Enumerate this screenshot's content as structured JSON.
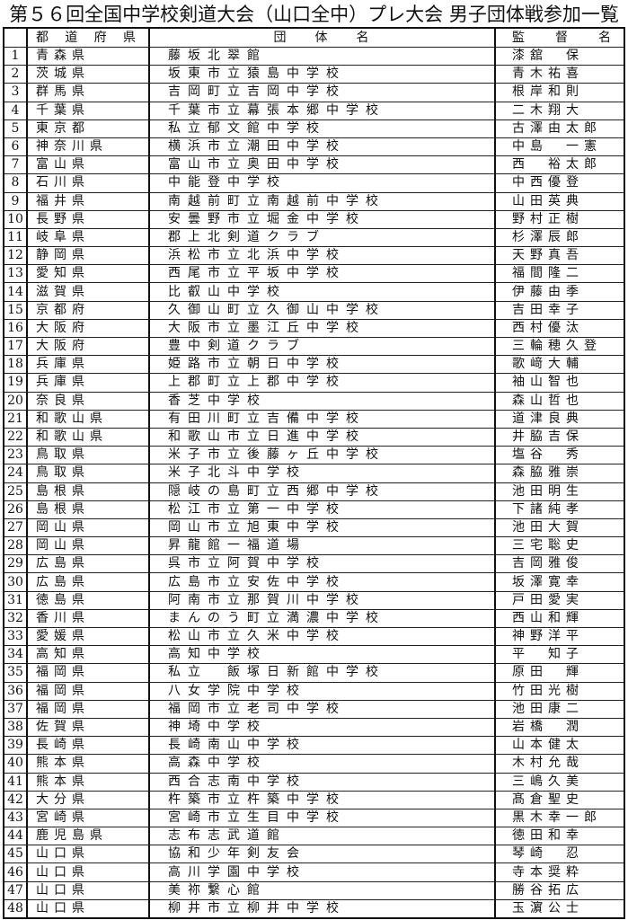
{
  "title": "第５６回全国中学校剣道大会（山口全中）プレ大会 男子団体戦参加一覧",
  "headers": {
    "num": "",
    "pref": "都道府県",
    "team": "団体名",
    "coach": "監　督　名"
  },
  "rows": [
    [
      "1",
      "青森県",
      "藤坂北翠館",
      "漆舘　保"
    ],
    [
      "2",
      "茨城県",
      "坂東市立猿島中学校",
      "青木祐喜"
    ],
    [
      "3",
      "群馬県",
      "吉岡町立吉岡中学校",
      "根岸和則"
    ],
    [
      "4",
      "千葉県",
      "千葉市立幕張本郷中学校",
      "二木翔大"
    ],
    [
      "5",
      "東京都",
      "私立郁文館中学校",
      "古澤由太郎"
    ],
    [
      "6",
      "神奈川県",
      "横浜市立潮田中学校",
      "中島　一憲"
    ],
    [
      "7",
      "富山県",
      "富山市立奥田中学校",
      "西　裕太郎"
    ],
    [
      "8",
      "石川県",
      "中能登中学校",
      "中西優登"
    ],
    [
      "9",
      "福井県",
      "南越前町立南越前中学校",
      "山田英典"
    ],
    [
      "10",
      "長野県",
      "安曇野市立堀金中学校",
      "野村正樹"
    ],
    [
      "11",
      "岐阜県",
      "郡上北剣道クラブ",
      "杉澤辰郎"
    ],
    [
      "12",
      "静岡県",
      "浜松市立北浜中学校",
      "天野真吾"
    ],
    [
      "13",
      "愛知県",
      "西尾市立平坂中学校",
      "福間隆二"
    ],
    [
      "14",
      "滋賀県",
      "比叡山中学校",
      "伊藤由季"
    ],
    [
      "15",
      "京都府",
      "久御山町立久御山中学校",
      "吉田幸子"
    ],
    [
      "16",
      "大阪府",
      "大阪市立墨江丘中学校",
      "西村優汰"
    ],
    [
      "17",
      "大阪府",
      "豊中剣道クラブ",
      "三輪穂久登"
    ],
    [
      "18",
      "兵庫県",
      "姫路市立朝日中学校",
      "歌﨑大輔"
    ],
    [
      "19",
      "兵庫県",
      "上郡町立上郡中学校",
      "袖山智也"
    ],
    [
      "20",
      "奈良県",
      "香芝中学校",
      "森山哲也"
    ],
    [
      "21",
      "和歌山県",
      "有田川町立吉備中学校",
      "道津良典"
    ],
    [
      "22",
      "和歌山県",
      "和歌山市立日進中学校",
      "井脇吉保"
    ],
    [
      "23",
      "鳥取県",
      "米子市立後藤ヶ丘中学校",
      "塩谷　秀"
    ],
    [
      "24",
      "鳥取県",
      "米子北斗中学校",
      "森脇雅崇"
    ],
    [
      "25",
      "島根県",
      "隠岐の島町立西郷中学校",
      "池田明生"
    ],
    [
      "26",
      "島根県",
      "松江市立第一中学校",
      "下諸純孝"
    ],
    [
      "27",
      "岡山県",
      "岡山市立旭東中学校",
      "池田大賀"
    ],
    [
      "28",
      "岡山県",
      "昇龍館一福道場",
      "三宅聡史"
    ],
    [
      "29",
      "広島県",
      "呉市立阿賀中学校",
      "吉岡雅俊"
    ],
    [
      "30",
      "広島県",
      "広島市立安佐中学校",
      "坂澤寛幸"
    ],
    [
      "31",
      "徳島県",
      "阿南市立那賀川中学校",
      "戸田愛実"
    ],
    [
      "32",
      "香川県",
      "まんのう町立満濃中学校",
      "西山和輝"
    ],
    [
      "33",
      "愛媛県",
      "松山市立久米中学校",
      "神野洋平"
    ],
    [
      "34",
      "高知県",
      "高知中学校",
      "平　知子"
    ],
    [
      "35",
      "福岡県",
      "私立　飯塚日新館中学校",
      "原田　輝"
    ],
    [
      "36",
      "福岡県",
      "八女学院中学校",
      "竹田光樹"
    ],
    [
      "37",
      "福岡県",
      "福岡市立老司中学校",
      "池田康二"
    ],
    [
      "38",
      "佐賀県",
      "神埼中学校",
      "岩橋　潤"
    ],
    [
      "39",
      "長崎県",
      "長崎南山中学校",
      "山本健太"
    ],
    [
      "40",
      "熊本県",
      "高森中学校",
      "木村允哉"
    ],
    [
      "41",
      "熊本県",
      "西合志南中学校",
      "三嶋久美"
    ],
    [
      "42",
      "大分県",
      "杵築市立杵築中学校",
      "髙倉聖史"
    ],
    [
      "43",
      "宮崎県",
      "宮崎市立生目中学校",
      "黒木幸一郎"
    ],
    [
      "44",
      "鹿児島県",
      "志布志武道館",
      "徳田和幸"
    ],
    [
      "45",
      "山口県",
      "協和少年剣友会",
      "琴崎　忍"
    ],
    [
      "46",
      "山口県",
      "高川学園中学校",
      "寺本奨粋"
    ],
    [
      "47",
      "山口県",
      "美祢繋心館",
      "勝谷拓広"
    ],
    [
      "48",
      "山口県",
      "柳井市立柳井中学校",
      "玉濵公士"
    ]
  ]
}
